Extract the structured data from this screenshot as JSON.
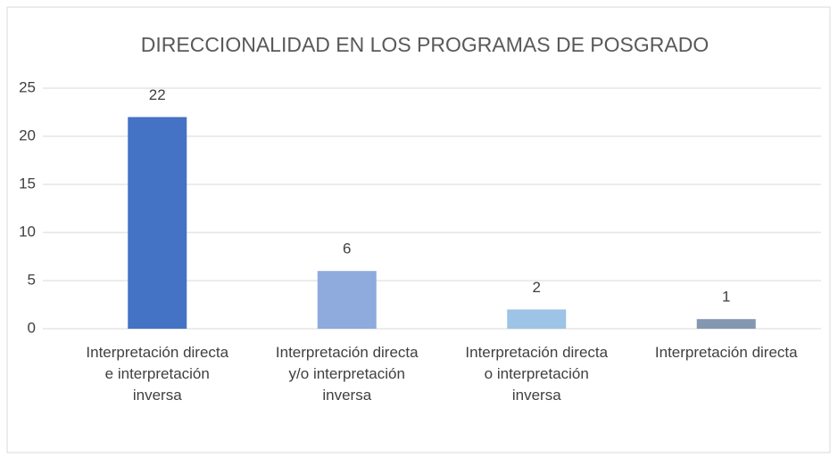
{
  "chart_data": {
    "type": "bar",
    "title": "DIRECCIONALIDAD EN LOS PROGRAMAS DE POSGRADO",
    "categories": [
      "Interpretación directa e interpretación inversa",
      "Interpretación directa y/o interpretación inversa",
      "Interpretación directa o interpretación inversa",
      "Interpretación directa"
    ],
    "values": [
      22,
      6,
      2,
      1
    ],
    "colors": [
      "#4472c4",
      "#8faadc",
      "#9dc3e6",
      "#8497b0"
    ],
    "ylim": [
      0,
      25
    ],
    "yticks": [
      0,
      5,
      10,
      15,
      20,
      25
    ],
    "grid": true
  }
}
